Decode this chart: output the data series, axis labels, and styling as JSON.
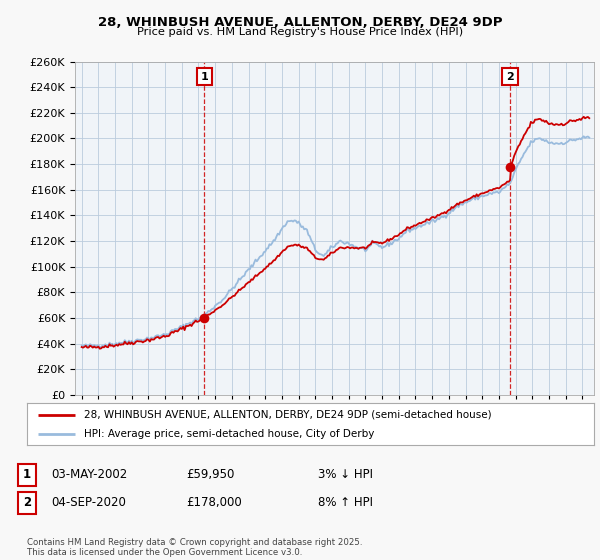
{
  "title_line1": "28, WHINBUSH AVENUE, ALLENTON, DERBY, DE24 9DP",
  "title_line2": "Price paid vs. HM Land Registry's House Price Index (HPI)",
  "legend_line1": "28, WHINBUSH AVENUE, ALLENTON, DERBY, DE24 9DP (semi-detached house)",
  "legend_line2": "HPI: Average price, semi-detached house, City of Derby",
  "annotation1_date": "03-MAY-2002",
  "annotation1_price": "£59,950",
  "annotation1_hpi": "3% ↓ HPI",
  "annotation2_date": "04-SEP-2020",
  "annotation2_price": "£178,000",
  "annotation2_hpi": "8% ↑ HPI",
  "footnote": "Contains HM Land Registry data © Crown copyright and database right 2025.\nThis data is licensed under the Open Government Licence v3.0.",
  "sale1_year": 2002.35,
  "sale1_price": 59950,
  "sale2_year": 2020.67,
  "sale2_price": 178000,
  "property_color": "#cc0000",
  "hpi_color": "#99bbdd",
  "ylim_min": 0,
  "ylim_max": 260000,
  "ytick_step": 20000,
  "background_color": "#f8f8f8",
  "plot_bg_color": "#f0f4f8",
  "grid_color": "#bbccdd"
}
